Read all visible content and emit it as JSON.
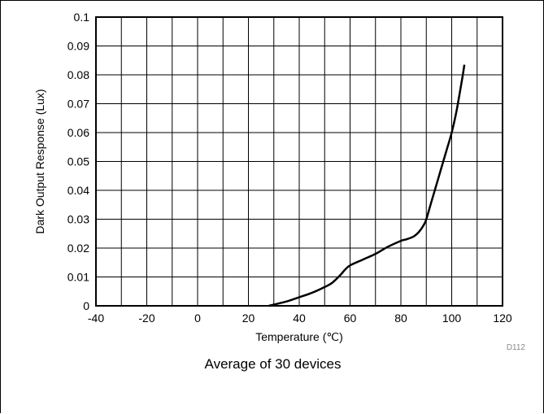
{
  "chart_data": {
    "type": "line",
    "xlabel": "Temperature (℃)",
    "ylabel": "Dark Output Response (Lux)",
    "xlim": [
      -40,
      120
    ],
    "ylim": [
      0,
      0.1
    ],
    "x_ticks": [
      "-40",
      "-20",
      "0",
      "20",
      "40",
      "60",
      "80",
      "100",
      "120"
    ],
    "y_ticks": [
      "0",
      "0.01",
      "0.02",
      "0.03",
      "0.04",
      "0.05",
      "0.06",
      "0.07",
      "0.08",
      "0.09",
      "0.1"
    ],
    "grid": true,
    "series": [
      {
        "x": [
          28,
          35,
          40,
          45,
          50,
          53,
          56,
          58,
          60,
          65,
          70,
          75,
          80,
          82,
          85,
          87,
          89,
          90,
          92,
          95,
          98,
          100,
          102,
          104,
          105
        ],
        "y": [
          0,
          0.0015,
          0.003,
          0.0045,
          0.0065,
          0.008,
          0.0105,
          0.0125,
          0.014,
          0.016,
          0.018,
          0.0205,
          0.0225,
          0.023,
          0.024,
          0.0255,
          0.028,
          0.03,
          0.036,
          0.045,
          0.054,
          0.06,
          0.068,
          0.078,
          0.0835
        ],
        "color": "#000000"
      }
    ]
  },
  "caption": "Average of 30 devices",
  "figure_id": "D112"
}
